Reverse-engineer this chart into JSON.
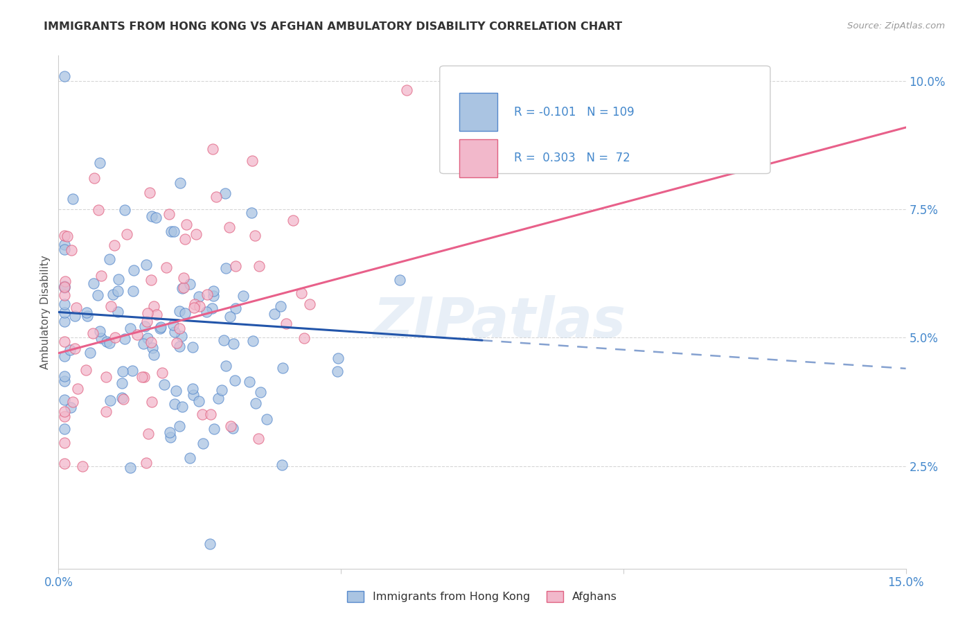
{
  "title": "IMMIGRANTS FROM HONG KONG VS AFGHAN AMBULATORY DISABILITY CORRELATION CHART",
  "source": "Source: ZipAtlas.com",
  "xmin": 0.0,
  "xmax": 0.15,
  "ymin": 0.005,
  "ymax": 0.105,
  "hk_color": "#aac4e2",
  "afghan_color": "#f2b8cb",
  "hk_edge_color": "#5588cc",
  "afghan_edge_color": "#e06080",
  "hk_line_color": "#2255aa",
  "afghan_line_color": "#e8608a",
  "hk_R": -0.101,
  "hk_N": 109,
  "afghan_R": 0.303,
  "afghan_N": 72,
  "watermark": "ZIPatlas",
  "legend_label_hk": "Immigrants from Hong Kong",
  "legend_label_afghan": "Afghans",
  "hk_line_start_y": 0.055,
  "hk_line_end_y": 0.044,
  "hk_line_solid_end_x": 0.075,
  "afghan_line_start_y": 0.047,
  "afghan_line_end_y": 0.091,
  "grid_color": "#cccccc",
  "title_color": "#333333",
  "axis_label_color": "#555555",
  "tick_color": "#4488cc",
  "source_color": "#999999"
}
